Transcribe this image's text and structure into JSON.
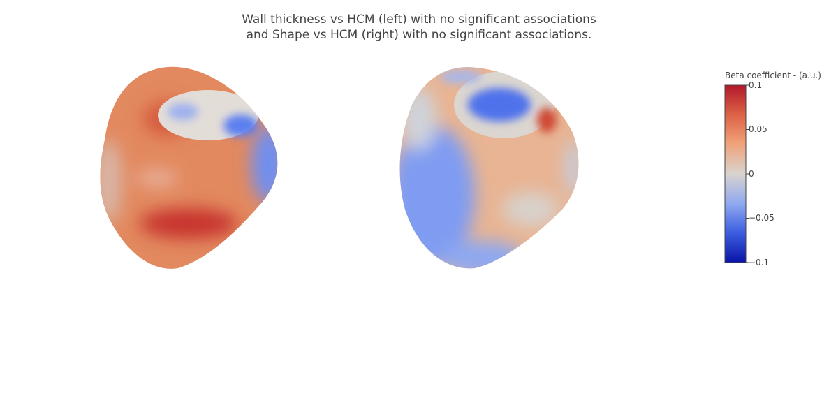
{
  "title_lines": [
    "Wall thickness vs HCM (left) with no significant associations",
    "and Shape vs HCM (right) with no significant associations."
  ],
  "colors": {
    "scale": [
      "#0a14a8",
      "#3b5fe0",
      "#8fa8f0",
      "#d9d3cf",
      "#f0a27a",
      "#dd6446",
      "#b2182b"
    ],
    "accent_left": "#e2825f",
    "accent_right": "#7f9cf2"
  },
  "chart_data": {
    "type": "heatmap",
    "colorbar": {
      "title": "Beta coefficient - (a.u.)",
      "range": [
        -0.1,
        0.1
      ],
      "ticks": [
        {
          "value": 0.1,
          "label": "0.1"
        },
        {
          "value": 0.05,
          "label": "0.05"
        },
        {
          "value": 0,
          "label": "0"
        },
        {
          "value": -0.05,
          "label": "−0.05"
        },
        {
          "value": -0.1,
          "label": "−0.1"
        }
      ]
    },
    "panels": [
      {
        "position": "left",
        "description_value": "mostly positive (~0.03 to 0.09)"
      },
      {
        "position": "right",
        "description_value": "mixed (~-0.05 to 0.08)"
      }
    ]
  }
}
